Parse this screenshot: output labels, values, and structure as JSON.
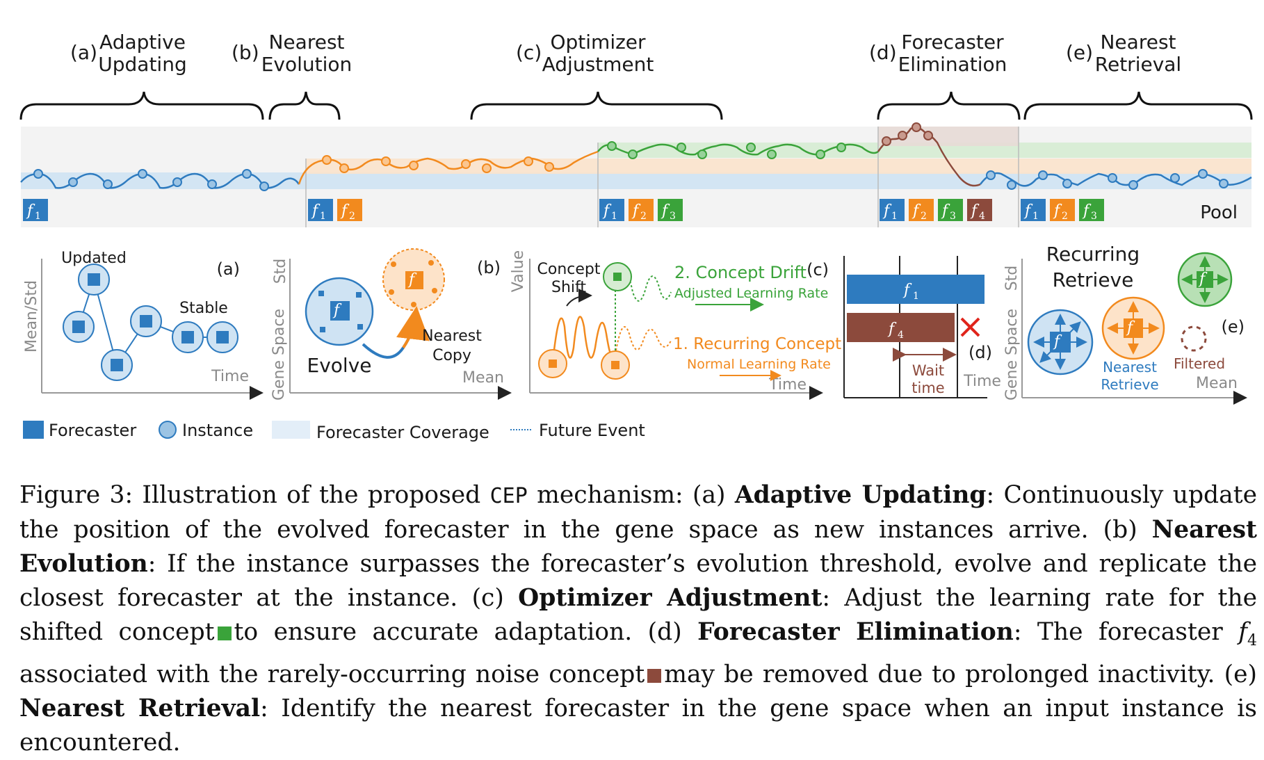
{
  "stages": [
    {
      "letter": "(a)",
      "line1": "Adaptive",
      "line2": "Updating"
    },
    {
      "letter": "(b)",
      "line1": "Nearest",
      "line2": "Evolution"
    },
    {
      "letter": "(c)",
      "line1": "Optimizer",
      "line2": "Adjustment"
    },
    {
      "letter": "(d)",
      "line1": "Forecaster",
      "line2": "Elimination"
    },
    {
      "letter": "(e)",
      "line1": "Nearest",
      "line2": "Retrieval"
    }
  ],
  "forecasters": {
    "f": "f",
    "s1": "1",
    "s2": "2",
    "s3": "3",
    "s4": "4"
  },
  "pool_label": "Pool",
  "colors": {
    "blue": "#2e7bbf",
    "orange": "#f28a1e",
    "green": "#3aa33a",
    "brown": "#8c4a3c",
    "light_blue": "#cfe3f3"
  },
  "panel_a": {
    "ylabel": "Mean/Std",
    "xlabel": "Time",
    "tag": "(a)",
    "updated": "Updated",
    "stable": "Stable"
  },
  "panel_b": {
    "ylabel_top": "Std",
    "ylabel_side": "Gene Space",
    "xlabel": "Mean",
    "tag": "(b)",
    "evolve": "Evolve",
    "nearest_line1": "Nearest",
    "nearest_line2": "Copy"
  },
  "panel_c": {
    "ylabel": "Value",
    "xlabel": "Time",
    "tag": "(c)",
    "shift_line1": "Concept",
    "shift_line2": "Shift",
    "drift": "2. Concept Drift",
    "adjusted": "Adjusted Learning Rate",
    "recurring": "1. Recurring Concept",
    "normal": "Normal Learning Rate"
  },
  "panel_d": {
    "tag": "(d)",
    "xlabel": "Time",
    "wait_line1": "Wait",
    "wait_line2": "time"
  },
  "panel_e": {
    "ylabel_top": "Std",
    "ylabel_side": "Gene Space",
    "xlabel": "Mean",
    "tag": "(e)",
    "title_line1": "Recurring",
    "title_line2": "Retrieve",
    "nearest_line1": "Nearest",
    "nearest_line2": "Retrieve",
    "filtered": "Filtered"
  },
  "legend": {
    "forecaster": "Forecaster",
    "instance": "Instance",
    "coverage": "Forecaster Coverage",
    "future": "Future Event"
  },
  "caption": {
    "p0": "Figure 3: Illustration of the proposed ",
    "mono": "CEP",
    "p1": " mechanism: (a) ",
    "b1": "Adaptive Updating",
    "p2": ": Continuously update the position of the evolved forecaster in the gene space as new instances arrive. (b) ",
    "b2": "Nearest Evolution",
    "p3": ": If the instance surpasses the forecaster’s evolution threshold, evolve and replicate the closest forecaster at the instance. (c) ",
    "b3": "Optimizer Adjustment",
    "p4": ": Adjust the learning rate for the shifted concept",
    "p5": "to ensure accurate adaptation. (d) ",
    "b4": "Forecaster Elimination",
    "p6": ": The forecaster ",
    "f4": "f",
    "f4sub": "4",
    "p7": " associated with the rarely-occurring noise concept",
    "p8": "may be removed due to prolonged inactivity. (e) ",
    "b5": "Nearest Retrieval",
    "p9": ": Identify the nearest forecaster in the gene space when an input instance is encountered."
  }
}
